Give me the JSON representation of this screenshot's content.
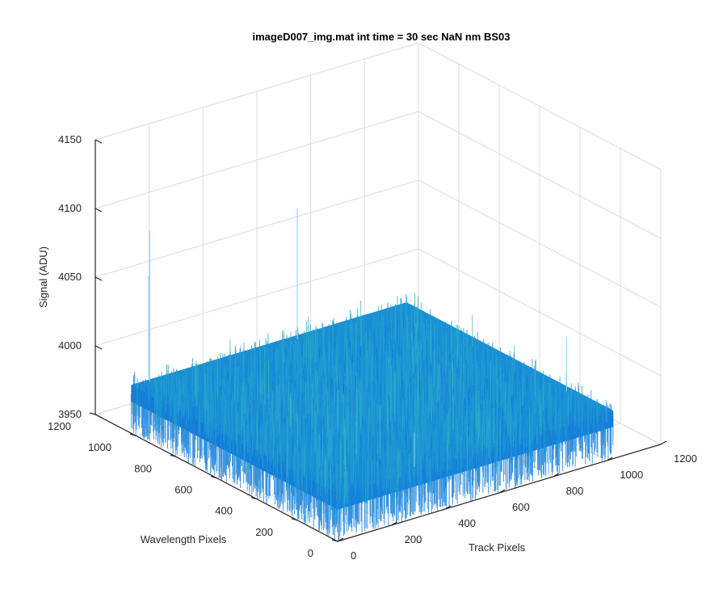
{
  "chart_data": {
    "type": "surface",
    "title": "imageD007_img.mat int time = 30 sec  NaN nm BS03",
    "xlabel": "Track Pixels",
    "ylabel": "Wavelength Pixels",
    "zlabel": "Signal (ADU)",
    "xlim": [
      0,
      1200
    ],
    "ylim": [
      0,
      1200
    ],
    "zlim": [
      3950,
      4150
    ],
    "xticks": [
      "0",
      "200",
      "400",
      "600",
      "800",
      "1000",
      "1200"
    ],
    "yticks": [
      "0",
      "200",
      "400",
      "600",
      "800",
      "1000",
      "1200"
    ],
    "zticks": [
      "3950",
      "4000",
      "4050",
      "4100",
      "4150"
    ],
    "grid": true,
    "surface_extent": {
      "x": [
        1,
        1024
      ],
      "y": [
        1,
        1024
      ]
    },
    "surface_mean": 3985,
    "surface_noise_range": [
      3965,
      4010
    ],
    "colormap": "parula"
  }
}
